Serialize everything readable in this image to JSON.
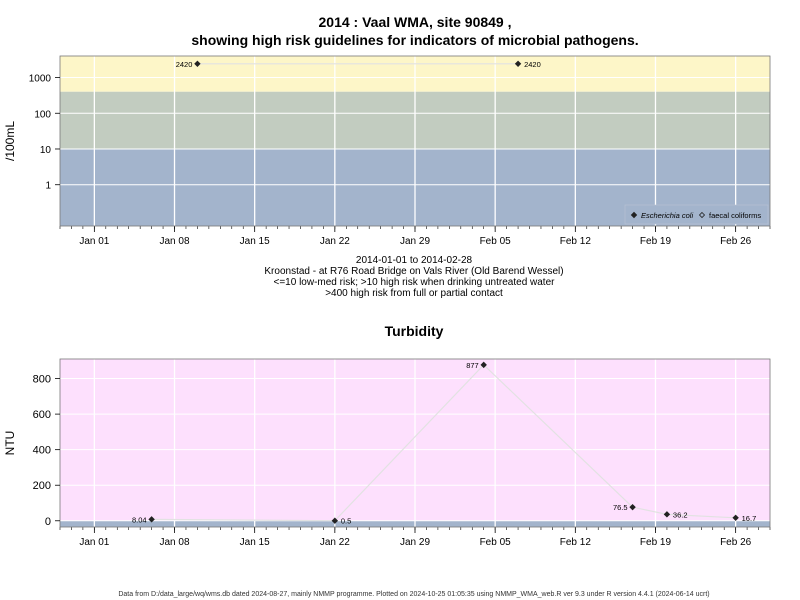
{
  "header": {
    "title_line1": "2014 : Vaal WMA, site 90849 ,",
    "title_line2": "showing high risk guidelines for indicators of microbial pathogens."
  },
  "notes": {
    "date_range": "2014-01-01 to 2014-02-28",
    "site": "Kroonstad - at R76 Road Bridge on Vals River (Old Barend Wessel)",
    "guideline_1": "<=10 low-med risk; >10 high risk when drinking untreated water",
    "guideline_2": ">400 high risk from full or partial contact"
  },
  "footer": {
    "text": "Data from D:/data_large/wq/wms.db dated 2024-08-27, mainly NMMP programme. Plotted on 2024-10-25 01:05:35 using NMMP_WMA_web.R ver 9.3 under R version 4.4.1 (2024-06-14 ucrt)"
  },
  "colors": {
    "band_high": "#fdf6c8",
    "band_mid": "#c2ccc0",
    "band_low": "#a3b4cc",
    "turbidity_bg": "#fde0fd",
    "turbidity_low_band": "#a3b4cc",
    "series_line": "#e2e2e2",
    "marker": "#222222"
  },
  "chart_data": [
    {
      "type": "scatter",
      "ylabel": "/100mL",
      "y_scale": "log",
      "yticks": [
        "1",
        "10",
        "100",
        "1000"
      ],
      "xticks": [
        "Jan 01",
        "Jan 08",
        "Jan 15",
        "Jan 22",
        "Jan 29",
        "Feb 05",
        "Feb 12",
        "Feb 19",
        "Feb 26"
      ],
      "xlim": [
        "2013-12-29",
        "2014-03-01"
      ],
      "ylim": [
        0.07,
        4000
      ],
      "bands": [
        {
          "from": 400,
          "to": 4000,
          "color": "#fdf6c8"
        },
        {
          "from": 10,
          "to": 400,
          "color": "#c2ccc0"
        },
        {
          "from": 0.07,
          "to": 10,
          "color": "#a3b4cc"
        }
      ],
      "series": [
        {
          "name": "Escherichia coli",
          "x": [
            "2014-01-10",
            "2014-02-07"
          ],
          "y": [
            2420,
            2420
          ],
          "labels": [
            "2420",
            "2420"
          ]
        },
        {
          "name": "faecal coliforms",
          "x": [],
          "y": [],
          "labels": []
        }
      ],
      "legend": "bottom-right",
      "grid": true
    },
    {
      "type": "line",
      "title": "Turbidity",
      "ylabel": "NTU",
      "yticks": [
        "0",
        "200",
        "400",
        "600",
        "800"
      ],
      "xticks": [
        "Jan 01",
        "Jan 08",
        "Jan 15",
        "Jan 22",
        "Jan 29",
        "Feb 05",
        "Feb 12",
        "Feb 19",
        "Feb 26"
      ],
      "xlim": [
        "2013-12-29",
        "2014-03-01"
      ],
      "ylim": [
        -35,
        910
      ],
      "bands": [
        {
          "from": -35,
          "to": 0,
          "color": "#a3b4cc"
        }
      ],
      "series": [
        {
          "name": "Turbidity",
          "x": [
            "2014-01-06",
            "2014-01-22",
            "2014-02-04",
            "2014-02-17",
            "2014-02-20",
            "2014-02-26"
          ],
          "y": [
            8.04,
            0.5,
            877,
            76.5,
            36.2,
            16.7
          ],
          "labels": [
            "8.04",
            "0.5",
            "877",
            "76.5",
            "36.2",
            "16.7"
          ]
        }
      ],
      "grid": true
    }
  ]
}
